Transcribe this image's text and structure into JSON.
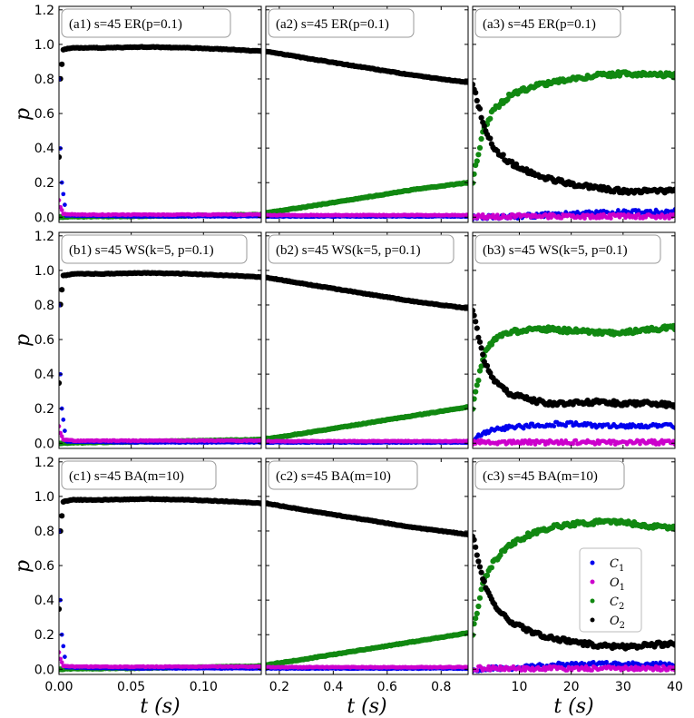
{
  "chart_data": {
    "type": "scatter",
    "grid": false,
    "ylabel": "p",
    "xlabel": "t (s)",
    "ylim": [
      -0.03,
      1.22
    ],
    "yticks": [
      "0.0",
      "0.2",
      "0.4",
      "0.6",
      "0.8",
      "1.0",
      "1.2"
    ],
    "columns": [
      {
        "xlim": [
          0.0,
          0.14
        ],
        "xticks": [
          "0.00",
          "0.05",
          "0.10"
        ],
        "tick_values": [
          0,
          0.05,
          0.1
        ]
      },
      {
        "xlim": [
          0.15,
          0.9
        ],
        "xticks": [
          "0.2",
          "0.4",
          "0.6",
          "0.8"
        ],
        "tick_values": [
          0.2,
          0.4,
          0.6,
          0.8
        ]
      },
      {
        "xlim": [
          1,
          40
        ],
        "xticks": [
          "10",
          "20",
          "30",
          "40"
        ],
        "tick_values": [
          10,
          20,
          30,
          40
        ]
      }
    ],
    "legend": {
      "placement": "lower-right of panel c3",
      "entries": [
        {
          "sym": "C",
          "sub": "1",
          "color": "#0000ee"
        },
        {
          "sym": "O",
          "sub": "1",
          "color": "#cc00cc"
        },
        {
          "sym": "C",
          "sub": "2",
          "color": "#118811"
        },
        {
          "sym": "O",
          "sub": "2",
          "color": "#000000"
        }
      ]
    },
    "panels": [
      {
        "label": "(a1)  s=45 ER(p=0.1)",
        "row": 0,
        "col": 0,
        "series": [
          {
            "name": "O2",
            "x": [
              0,
              0.001,
              0.003,
              0.01,
              0.03,
              0.06,
              0.09,
              0.12,
              0.14
            ],
            "y": [
              0.35,
              0.8,
              0.97,
              0.98,
              0.98,
              0.985,
              0.98,
              0.97,
              0.96
            ]
          },
          {
            "name": "C2",
            "x": [
              0,
              0.01,
              0.05,
              0.1,
              0.14
            ],
            "y": [
              0.0,
              0.003,
              0.005,
              0.01,
              0.015
            ]
          },
          {
            "name": "O1",
            "x": [
              0,
              0.001,
              0.003,
              0.01,
              0.05,
              0.1,
              0.14
            ],
            "y": [
              0.1,
              0.06,
              0.02,
              0.015,
              0.015,
              0.015,
              0.015
            ]
          },
          {
            "name": "C1",
            "x": [
              0,
              0.0005,
              0.001,
              0.002,
              0.005,
              0.05,
              0.14
            ],
            "y": [
              0.8,
              0.6,
              0.4,
              0.2,
              0.01,
              0.005,
              0.005
            ]
          }
        ]
      },
      {
        "label": "(a2)  s=45 ER(p=0.1)",
        "row": 0,
        "col": 1,
        "series": [
          {
            "name": "O2",
            "x": [
              0.15,
              0.3,
              0.5,
              0.7,
              0.9
            ],
            "y": [
              0.96,
              0.92,
              0.87,
              0.82,
              0.78
            ]
          },
          {
            "name": "C2",
            "x": [
              0.15,
              0.3,
              0.5,
              0.7,
              0.9
            ],
            "y": [
              0.025,
              0.06,
              0.11,
              0.16,
              0.2
            ]
          },
          {
            "name": "O1",
            "x": [
              0.15,
              0.9
            ],
            "y": [
              0.012,
              0.012
            ]
          },
          {
            "name": "C1",
            "x": [
              0.15,
              0.9
            ],
            "y": [
              0.004,
              0.004
            ]
          }
        ]
      },
      {
        "label": "(a3)  s=45 ER(p=0.1)",
        "row": 0,
        "col": 2,
        "series": [
          {
            "name": "O2",
            "x": [
              1,
              3,
              5,
              8,
              12,
              16,
              20,
              25,
              30,
              35,
              40
            ],
            "y": [
              0.78,
              0.55,
              0.4,
              0.32,
              0.26,
              0.22,
              0.19,
              0.17,
              0.15,
              0.15,
              0.15
            ]
          },
          {
            "name": "C2",
            "x": [
              1,
              3,
              5,
              8,
              12,
              16,
              20,
              25,
              30,
              35,
              40
            ],
            "y": [
              0.21,
              0.5,
              0.62,
              0.7,
              0.75,
              0.78,
              0.8,
              0.82,
              0.83,
              0.83,
              0.82
            ]
          },
          {
            "name": "C1",
            "x": [
              1,
              10,
              20,
              30,
              40
            ],
            "y": [
              0.0,
              0.005,
              0.02,
              0.03,
              0.035
            ]
          },
          {
            "name": "O1",
            "x": [
              1,
              40
            ],
            "y": [
              0.005,
              0.005
            ]
          }
        ]
      },
      {
        "label": "(b1)  s=45 WS(k=5, p=0.1)",
        "row": 1,
        "col": 0,
        "series": [
          {
            "name": "O2",
            "x": [
              0,
              0.001,
              0.003,
              0.01,
              0.03,
              0.06,
              0.09,
              0.12,
              0.14
            ],
            "y": [
              0.35,
              0.8,
              0.97,
              0.98,
              0.98,
              0.985,
              0.98,
              0.97,
              0.96
            ]
          },
          {
            "name": "C2",
            "x": [
              0,
              0.01,
              0.05,
              0.1,
              0.14
            ],
            "y": [
              0.0,
              0.003,
              0.008,
              0.015,
              0.02
            ]
          },
          {
            "name": "O1",
            "x": [
              0,
              0.001,
              0.003,
              0.01,
              0.05,
              0.1,
              0.14
            ],
            "y": [
              0.1,
              0.06,
              0.02,
              0.015,
              0.015,
              0.015,
              0.015
            ]
          },
          {
            "name": "C1",
            "x": [
              0,
              0.0005,
              0.001,
              0.002,
              0.005,
              0.05,
              0.14
            ],
            "y": [
              0.8,
              0.6,
              0.4,
              0.2,
              0.01,
              0.005,
              0.005
            ]
          }
        ]
      },
      {
        "label": "(b2)  s=45 WS(k=5, p=0.1)",
        "row": 1,
        "col": 1,
        "series": [
          {
            "name": "O2",
            "x": [
              0.15,
              0.3,
              0.5,
              0.7,
              0.9
            ],
            "y": [
              0.96,
              0.92,
              0.87,
              0.82,
              0.78
            ]
          },
          {
            "name": "C2",
            "x": [
              0.15,
              0.3,
              0.5,
              0.7,
              0.9
            ],
            "y": [
              0.025,
              0.06,
              0.11,
              0.16,
              0.21
            ]
          },
          {
            "name": "O1",
            "x": [
              0.15,
              0.9
            ],
            "y": [
              0.012,
              0.012
            ]
          },
          {
            "name": "C1",
            "x": [
              0.15,
              0.9
            ],
            "y": [
              0.004,
              0.004
            ]
          }
        ]
      },
      {
        "label": "(b3)  s=45 WS(k=5, p=0.1)",
        "row": 1,
        "col": 2,
        "series": [
          {
            "name": "O2",
            "x": [
              1,
              3,
              5,
              8,
              12,
              16,
              20,
              25,
              30,
              35,
              40
            ],
            "y": [
              0.78,
              0.5,
              0.36,
              0.29,
              0.25,
              0.23,
              0.23,
              0.24,
              0.23,
              0.23,
              0.22
            ]
          },
          {
            "name": "C2",
            "x": [
              1,
              3,
              5,
              8,
              12,
              16,
              20,
              25,
              30,
              35,
              40
            ],
            "y": [
              0.21,
              0.5,
              0.6,
              0.64,
              0.66,
              0.66,
              0.65,
              0.64,
              0.64,
              0.66,
              0.67
            ]
          },
          {
            "name": "C1",
            "x": [
              1,
              4,
              8,
              12,
              16,
              20,
              25,
              30,
              35,
              40
            ],
            "y": [
              0.02,
              0.07,
              0.09,
              0.1,
              0.11,
              0.11,
              0.1,
              0.1,
              0.1,
              0.1
            ]
          },
          {
            "name": "O1",
            "x": [
              1,
              40
            ],
            "y": [
              0.005,
              0.005
            ]
          }
        ]
      },
      {
        "label": "(c1)  s=45 BA(m=10)",
        "row": 2,
        "col": 0,
        "series": [
          {
            "name": "O2",
            "x": [
              0,
              0.001,
              0.003,
              0.01,
              0.03,
              0.06,
              0.09,
              0.12,
              0.14
            ],
            "y": [
              0.35,
              0.8,
              0.97,
              0.98,
              0.98,
              0.985,
              0.98,
              0.97,
              0.96
            ]
          },
          {
            "name": "C2",
            "x": [
              0,
              0.01,
              0.05,
              0.1,
              0.14
            ],
            "y": [
              0.0,
              0.003,
              0.006,
              0.012,
              0.018
            ]
          },
          {
            "name": "O1",
            "x": [
              0,
              0.001,
              0.003,
              0.01,
              0.05,
              0.1,
              0.14
            ],
            "y": [
              0.1,
              0.06,
              0.02,
              0.015,
              0.015,
              0.015,
              0.015
            ]
          },
          {
            "name": "C1",
            "x": [
              0,
              0.0005,
              0.001,
              0.002,
              0.005,
              0.05,
              0.14
            ],
            "y": [
              0.8,
              0.6,
              0.4,
              0.2,
              0.01,
              0.005,
              0.005
            ]
          }
        ]
      },
      {
        "label": "(c2)  s=45 BA(m=10)",
        "row": 2,
        "col": 1,
        "series": [
          {
            "name": "O2",
            "x": [
              0.15,
              0.3,
              0.5,
              0.7,
              0.9
            ],
            "y": [
              0.96,
              0.92,
              0.87,
              0.82,
              0.78
            ]
          },
          {
            "name": "C2",
            "x": [
              0.15,
              0.3,
              0.5,
              0.7,
              0.9
            ],
            "y": [
              0.025,
              0.06,
              0.11,
              0.16,
              0.21
            ]
          },
          {
            "name": "O1",
            "x": [
              0.15,
              0.9
            ],
            "y": [
              0.012,
              0.012
            ]
          },
          {
            "name": "C1",
            "x": [
              0.15,
              0.9
            ],
            "y": [
              0.004,
              0.004
            ]
          }
        ]
      },
      {
        "label": "(c3)  s=45 BA(m=10)",
        "row": 2,
        "col": 2,
        "series": [
          {
            "name": "O2",
            "x": [
              1,
              3,
              5,
              8,
              12,
              16,
              20,
              25,
              30,
              35,
              40
            ],
            "y": [
              0.78,
              0.52,
              0.38,
              0.28,
              0.22,
              0.18,
              0.16,
              0.14,
              0.13,
              0.14,
              0.15
            ]
          },
          {
            "name": "C2",
            "x": [
              1,
              3,
              5,
              8,
              12,
              16,
              20,
              25,
              30,
              35,
              40
            ],
            "y": [
              0.21,
              0.5,
              0.62,
              0.72,
              0.78,
              0.82,
              0.84,
              0.85,
              0.85,
              0.83,
              0.82
            ]
          },
          {
            "name": "C1",
            "x": [
              1,
              10,
              20,
              30,
              40
            ],
            "y": [
              0.0,
              0.01,
              0.03,
              0.03,
              0.03
            ]
          },
          {
            "name": "O1",
            "x": [
              1,
              40
            ],
            "y": [
              0.005,
              0.005
            ]
          }
        ]
      }
    ]
  }
}
